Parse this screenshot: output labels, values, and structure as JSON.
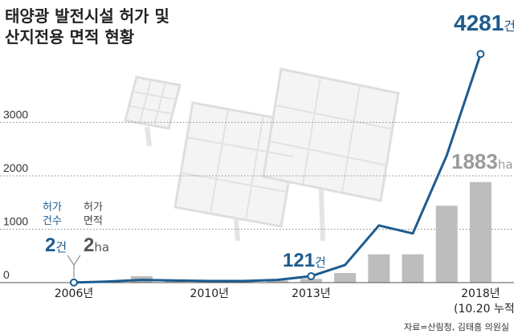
{
  "title_line1": "태양광 발전시설 허가 및",
  "title_line2": "산지전용 면적 현황",
  "source": "자료=산림청, 김태흠 의원실",
  "x_note": "(10.20 누적)",
  "legend_permits": [
    "허가",
    "건수"
  ],
  "legend_area": [
    "허가",
    "면적"
  ],
  "permits_start_value": "2",
  "permits_start_unit": "건",
  "area_start_value": "2",
  "area_start_unit": "ha",
  "permits_2013_value": "121",
  "permits_2013_unit": "건",
  "permits_end_value": "4281",
  "permits_end_unit": "건",
  "area_end_value": "1883",
  "area_end_unit": "ha",
  "colors": {
    "permits": "#1e5b8e",
    "area": "#bdbdbd",
    "gridline": "#888888",
    "text": "#222222"
  },
  "chart_data": {
    "type": "bar+line",
    "x": [
      2006,
      2007,
      2008,
      2009,
      2010,
      2011,
      2012,
      2013,
      2014,
      2015,
      2016,
      2017,
      2018
    ],
    "x_tick_labels": [
      {
        "x": 2006,
        "label": "2006년"
      },
      {
        "x": 2010,
        "label": "2010년"
      },
      {
        "x": 2013,
        "label": "2013년"
      },
      {
        "x": 2018,
        "label": "2018년"
      }
    ],
    "yticks": [
      0,
      1000,
      2000,
      3000
    ],
    "ylim": [
      0,
      4600
    ],
    "grid": "horizontal-dotted",
    "series": [
      {
        "type": "bar",
        "values": [
          2,
          10,
          120,
          60,
          30,
          20,
          40,
          70,
          180,
          530,
          530,
          1440,
          1883
        ]
      },
      {
        "type": "line",
        "values": [
          2,
          20,
          50,
          40,
          30,
          30,
          50,
          121,
          330,
          1070,
          920,
          2380,
          4281
        ]
      }
    ]
  }
}
